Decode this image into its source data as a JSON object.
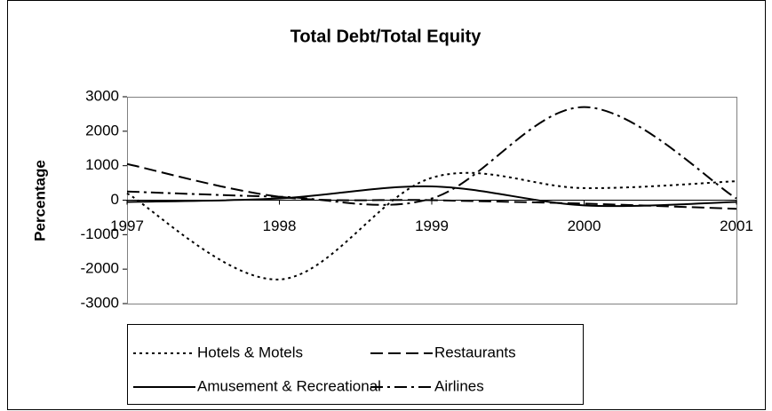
{
  "chart_data": {
    "type": "line",
    "title": "Total Debt/Total Equity",
    "y_label": "Percentage",
    "categories": [
      "1997",
      "1998",
      "1999",
      "2000",
      "2001"
    ],
    "series": [
      {
        "name": "Hotels & Motels",
        "color": "#000000",
        "dash": "dotted",
        "values": [
          200,
          -2300,
          650,
          350,
          550
        ]
      },
      {
        "name": "Restaurants",
        "color": "#000000",
        "dash": "dashed",
        "values": [
          1050,
          100,
          0,
          -100,
          -250
        ]
      },
      {
        "name": "Amusement & Recreational",
        "color": "#000000",
        "dash": "solid",
        "values": [
          -50,
          50,
          400,
          -150,
          -50
        ]
      },
      {
        "name": "Airlines",
        "color": "#000000",
        "dash": "dash-dot",
        "values": [
          250,
          100,
          50,
          2700,
          50
        ]
      }
    ],
    "ylim": [
      -3000,
      3000
    ],
    "yticks": [
      -3000,
      -2000,
      -1000,
      0,
      1000,
      2000,
      3000
    ],
    "grid": false,
    "legend": "bottom"
  }
}
